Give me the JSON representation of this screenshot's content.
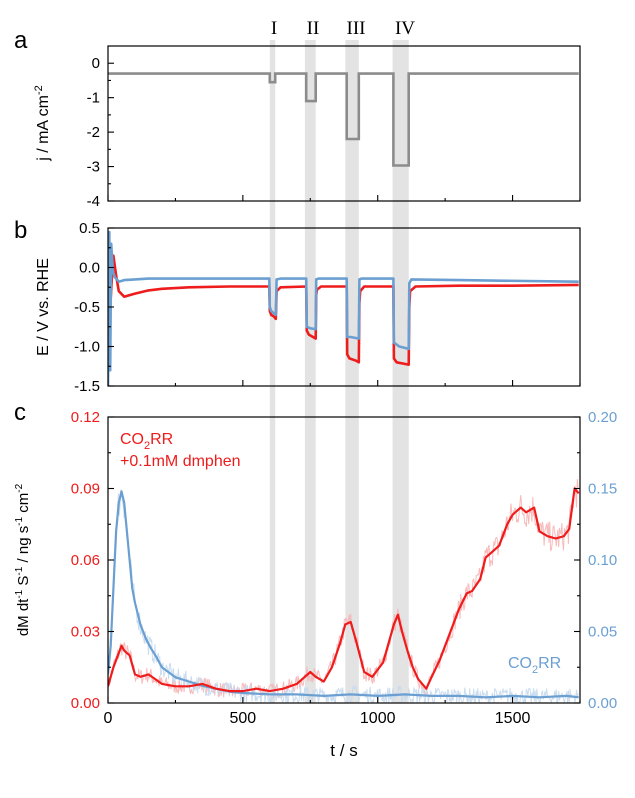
{
  "colors": {
    "current": "#8c8c8c",
    "red": "#ee1c1c",
    "red_light": "#f7b3b3",
    "blue": "#6b9fd1",
    "blue_light": "#c4d9ee",
    "band": "#e3e3e3",
    "axis": "#000000"
  },
  "regions": {
    "labels": [
      "I",
      "II",
      "III",
      "IV"
    ],
    "x_ranges": [
      [
        600,
        620
      ],
      [
        730,
        770
      ],
      [
        880,
        930
      ],
      [
        1055,
        1115
      ]
    ]
  },
  "chart_data": [
    {
      "type": "line",
      "panel_label": "a",
      "xlim": [
        0,
        1750
      ],
      "ylim": [
        -4,
        0.5
      ],
      "yticks": [
        "0",
        "-1",
        "-2",
        "-3",
        "-4"
      ],
      "ylabel_main": "j / mA cm",
      "ylabel_sup": "-2",
      "grid": false,
      "series": [
        {
          "color_key": "current",
          "x": [
            0,
            600,
            600,
            620,
            620,
            735,
            735,
            770,
            770,
            885,
            885,
            930,
            930,
            1058,
            1058,
            1115,
            1115,
            1745
          ],
          "y": [
            -0.3,
            -0.3,
            -0.55,
            -0.55,
            -0.3,
            -0.3,
            -1.1,
            -1.1,
            -0.3,
            -0.3,
            -2.2,
            -2.2,
            -0.3,
            -0.3,
            -2.97,
            -2.97,
            -0.3,
            -0.3
          ]
        }
      ]
    },
    {
      "type": "line",
      "panel_label": "b",
      "xlim": [
        0,
        1750
      ],
      "ylim": [
        -1.5,
        0.5
      ],
      "yticks": [
        "0.5",
        "0.0",
        "-0.5",
        "-1.0",
        "-1.5"
      ],
      "ylabel": "E / V vs. RHE",
      "grid": false,
      "series": [
        {
          "color_key": "red",
          "x": [
            0,
            10,
            15,
            20,
            30,
            40,
            60,
            100,
            150,
            200,
            300,
            450,
            598,
            600,
            605,
            615,
            622,
            625,
            640,
            735,
            737,
            745,
            760,
            770,
            772,
            775,
            790,
            885,
            887,
            895,
            920,
            930,
            932,
            935,
            950,
            1058,
            1060,
            1070,
            1100,
            1115,
            1117,
            1120,
            1140,
            1300,
            1500,
            1745
          ],
          "y": [
            -0.25,
            -0.4,
            -0.1,
            0.15,
            -0.1,
            -0.3,
            -0.37,
            -0.33,
            -0.29,
            -0.27,
            -0.25,
            -0.24,
            -0.24,
            -0.55,
            -0.6,
            -0.62,
            -0.65,
            -0.3,
            -0.25,
            -0.24,
            -0.8,
            -0.85,
            -0.88,
            -0.9,
            -0.35,
            -0.28,
            -0.24,
            -0.24,
            -1.1,
            -1.15,
            -1.18,
            -1.2,
            -0.45,
            -0.3,
            -0.24,
            -0.24,
            -1.15,
            -1.2,
            -1.22,
            -1.23,
            -0.5,
            -0.3,
            -0.24,
            -0.23,
            -0.23,
            -0.22
          ]
        },
        {
          "color_key": "blue",
          "x": [
            0,
            5,
            8,
            12,
            18,
            25,
            40,
            60,
            100,
            150,
            300,
            450,
            598,
            600,
            605,
            615,
            622,
            625,
            640,
            735,
            737,
            750,
            770,
            772,
            780,
            885,
            887,
            900,
            930,
            932,
            940,
            1058,
            1060,
            1080,
            1115,
            1117,
            1125,
            1300,
            1745
          ],
          "y": [
            -1.5,
            0.45,
            -1.3,
            0.3,
            -0.05,
            -0.12,
            -0.18,
            -0.16,
            -0.15,
            -0.14,
            -0.14,
            -0.14,
            -0.14,
            -0.5,
            -0.55,
            -0.58,
            -0.6,
            -0.15,
            -0.14,
            -0.14,
            -0.75,
            -0.77,
            -0.78,
            -0.15,
            -0.14,
            -0.14,
            -0.88,
            -0.88,
            -0.9,
            -0.15,
            -0.14,
            -0.14,
            -0.95,
            -1.0,
            -1.03,
            -0.2,
            -0.15,
            -0.16,
            -0.18
          ]
        }
      ]
    },
    {
      "type": "line",
      "panel_label": "c",
      "xlim": [
        0,
        1750
      ],
      "xticks": [
        "0",
        "500",
        "1000",
        "1500"
      ],
      "xlabel": "t / s",
      "ylim_left": [
        0,
        0.12
      ],
      "yticks_left": [
        "0.00",
        "0.03",
        "0.06",
        "0.09",
        "0.12"
      ],
      "ylim_right": [
        0,
        0.2
      ],
      "yticks_right": [
        "0.00",
        "0.05",
        "0.10",
        "0.15",
        "0.20"
      ],
      "ylabel_parts": [
        "dM dt",
        "-1",
        " S",
        "-1",
        " / ng s",
        "-1",
        " cm",
        "-2"
      ],
      "grid": false,
      "legend_red_line1_pre": "CO",
      "legend_red_line1_sub": "2",
      "legend_red_line1_post": "RR",
      "legend_red_line2": "+0.1mM dmphen",
      "legend_blue_pre": "CO",
      "legend_blue_sub": "2",
      "legend_blue_post": "RR",
      "series": [
        {
          "color_key": "red",
          "axis": "left",
          "x": [
            0,
            20,
            40,
            50,
            60,
            80,
            100,
            120,
            150,
            200,
            250,
            300,
            350,
            400,
            450,
            500,
            550,
            600,
            650,
            700,
            730,
            750,
            770,
            800,
            830,
            860,
            880,
            900,
            920,
            950,
            980,
            1000,
            1020,
            1040,
            1060,
            1075,
            1090,
            1110,
            1130,
            1150,
            1180,
            1200,
            1230,
            1250,
            1280,
            1300,
            1330,
            1350,
            1380,
            1400,
            1420,
            1450,
            1480,
            1500,
            1530,
            1550,
            1580,
            1600,
            1630,
            1660,
            1690,
            1710,
            1730,
            1745
          ],
          "y": [
            0.007,
            0.015,
            0.021,
            0.024,
            0.022,
            0.02,
            0.012,
            0.011,
            0.012,
            0.008,
            0.007,
            0.007,
            0.008,
            0.006,
            0.005,
            0.005,
            0.006,
            0.005,
            0.006,
            0.008,
            0.011,
            0.013,
            0.011,
            0.009,
            0.015,
            0.025,
            0.033,
            0.034,
            0.026,
            0.013,
            0.011,
            0.014,
            0.017,
            0.025,
            0.033,
            0.037,
            0.03,
            0.022,
            0.015,
            0.01,
            0.006,
            0.011,
            0.018,
            0.024,
            0.033,
            0.039,
            0.046,
            0.047,
            0.052,
            0.061,
            0.063,
            0.066,
            0.075,
            0.079,
            0.082,
            0.08,
            0.082,
            0.072,
            0.07,
            0.069,
            0.07,
            0.073,
            0.09,
            0.088
          ]
        },
        {
          "color_key": "blue",
          "axis": "right",
          "x": [
            0,
            10,
            20,
            30,
            40,
            50,
            60,
            70,
            80,
            90,
            100,
            120,
            140,
            160,
            180,
            200,
            250,
            300,
            350,
            400,
            450,
            500,
            600,
            700,
            800,
            900,
            1000,
            1100,
            1200,
            1300,
            1400,
            1500,
            1600,
            1700,
            1745
          ],
          "y": [
            0.02,
            0.04,
            0.08,
            0.12,
            0.14,
            0.148,
            0.14,
            0.12,
            0.1,
            0.08,
            0.07,
            0.055,
            0.045,
            0.038,
            0.032,
            0.025,
            0.018,
            0.015,
            0.012,
            0.01,
            0.008,
            0.007,
            0.006,
            0.006,
            0.005,
            0.006,
            0.005,
            0.006,
            0.005,
            0.005,
            0.004,
            0.005,
            0.004,
            0.005,
            0.004
          ]
        }
      ]
    }
  ]
}
